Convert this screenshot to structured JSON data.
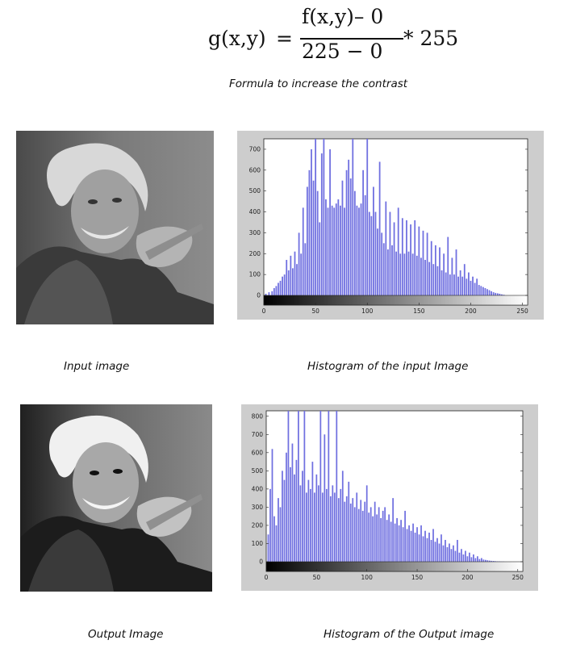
{
  "formula": {
    "lhs": "g(x,y)",
    "equals": "=",
    "numerator": "f(x,y)– 0",
    "denominator": "225 − 0",
    "multiplier": "* 255"
  },
  "captions": {
    "formula": "Formula to increase the contrast",
    "input_image": "Input image",
    "input_histogram": "Histogram of the input Image",
    "output_image": "Output Image",
    "output_histogram": "Histogram of the Output image"
  },
  "chart_data": [
    {
      "type": "bar",
      "x": [
        2,
        5,
        8,
        10,
        12,
        14,
        16,
        18,
        20,
        22,
        24,
        26,
        28,
        30,
        32,
        34,
        36,
        38,
        40,
        42,
        44,
        46,
        48,
        50,
        52,
        54,
        56,
        58,
        60,
        62,
        64,
        66,
        68,
        70,
        72,
        74,
        76,
        78,
        80,
        82,
        84,
        86,
        88,
        90,
        92,
        94,
        96,
        98,
        100,
        102,
        104,
        106,
        108,
        110,
        112,
        114,
        116,
        118,
        120,
        122,
        124,
        126,
        128,
        130,
        132,
        134,
        136,
        138,
        140,
        142,
        144,
        146,
        148,
        150,
        152,
        154,
        156,
        158,
        160,
        162,
        164,
        166,
        168,
        170,
        172,
        174,
        176,
        178,
        180,
        182,
        184,
        186,
        188,
        190,
        192,
        194,
        196,
        198,
        200,
        202,
        204,
        206,
        208,
        210,
        212,
        214,
        216,
        218,
        220,
        222,
        224,
        226,
        228,
        230,
        232
      ],
      "y": [
        8,
        15,
        20,
        35,
        45,
        60,
        70,
        90,
        100,
        170,
        120,
        190,
        130,
        210,
        150,
        300,
        200,
        420,
        250,
        520,
        600,
        700,
        550,
        800,
        500,
        350,
        680,
        800,
        460,
        420,
        700,
        430,
        420,
        440,
        460,
        430,
        550,
        420,
        600,
        650,
        560,
        800,
        500,
        430,
        420,
        440,
        600,
        480,
        800,
        400,
        380,
        520,
        400,
        320,
        640,
        300,
        250,
        450,
        220,
        400,
        240,
        350,
        210,
        420,
        200,
        370,
        200,
        360,
        210,
        340,
        200,
        360,
        190,
        330,
        180,
        310,
        170,
        300,
        160,
        260,
        150,
        240,
        140,
        230,
        120,
        200,
        110,
        280,
        100,
        180,
        100,
        220,
        90,
        120,
        90,
        150,
        80,
        110,
        70,
        90,
        60,
        80,
        50,
        45,
        40,
        35,
        30,
        25,
        20,
        15,
        12,
        10,
        8,
        5,
        3
      ],
      "xlim": [
        0,
        255
      ],
      "ylim": [
        0,
        750
      ],
      "xticks": [
        0,
        50,
        100,
        150,
        200,
        250
      ],
      "yticks": [
        0,
        100,
        200,
        300,
        400,
        500,
        600,
        700
      ],
      "color": "#7070e0",
      "grid": false,
      "colorbar": "grayscale"
    },
    {
      "type": "bar",
      "x": [
        2,
        4,
        6,
        8,
        10,
        12,
        14,
        16,
        18,
        20,
        22,
        24,
        26,
        28,
        30,
        32,
        34,
        36,
        38,
        40,
        42,
        44,
        46,
        48,
        50,
        52,
        54,
        56,
        58,
        60,
        62,
        64,
        66,
        68,
        70,
        72,
        74,
        76,
        78,
        80,
        82,
        84,
        86,
        88,
        90,
        92,
        94,
        96,
        98,
        100,
        102,
        104,
        106,
        108,
        110,
        112,
        114,
        116,
        118,
        120,
        122,
        124,
        126,
        128,
        130,
        132,
        134,
        136,
        138,
        140,
        142,
        144,
        146,
        148,
        150,
        152,
        154,
        156,
        158,
        160,
        162,
        164,
        166,
        168,
        170,
        172,
        174,
        176,
        178,
        180,
        182,
        184,
        186,
        188,
        190,
        192,
        194,
        196,
        198,
        200,
        202,
        204,
        206,
        208,
        210,
        212,
        214,
        216,
        218,
        220,
        222,
        224,
        226,
        228,
        230,
        232,
        234,
        236,
        238,
        240
      ],
      "y": [
        150,
        400,
        620,
        250,
        200,
        350,
        300,
        500,
        450,
        600,
        850,
        520,
        650,
        480,
        560,
        850,
        420,
        500,
        850,
        380,
        450,
        400,
        550,
        380,
        480,
        420,
        850,
        380,
        700,
        400,
        850,
        360,
        420,
        380,
        850,
        350,
        400,
        500,
        330,
        360,
        440,
        320,
        350,
        300,
        380,
        290,
        340,
        280,
        330,
        420,
        270,
        300,
        250,
        330,
        260,
        300,
        240,
        280,
        300,
        230,
        260,
        220,
        350,
        210,
        240,
        200,
        230,
        190,
        280,
        180,
        200,
        170,
        210,
        160,
        190,
        150,
        200,
        140,
        170,
        130,
        160,
        120,
        180,
        110,
        130,
        100,
        150,
        90,
        120,
        80,
        100,
        70,
        90,
        60,
        120,
        50,
        70,
        40,
        60,
        30,
        50,
        25,
        40,
        20,
        30,
        15,
        20,
        12,
        10,
        8,
        6,
        5,
        4,
        3,
        2,
        2,
        1,
        1,
        0,
        0
      ],
      "xlim": [
        0,
        255
      ],
      "ylim": [
        0,
        830
      ],
      "xticks": [
        0,
        50,
        100,
        150,
        200,
        250
      ],
      "yticks": [
        0,
        100,
        200,
        300,
        400,
        500,
        600,
        700,
        800
      ],
      "color": "#7070e0",
      "grid": false,
      "colorbar": "grayscale"
    }
  ]
}
